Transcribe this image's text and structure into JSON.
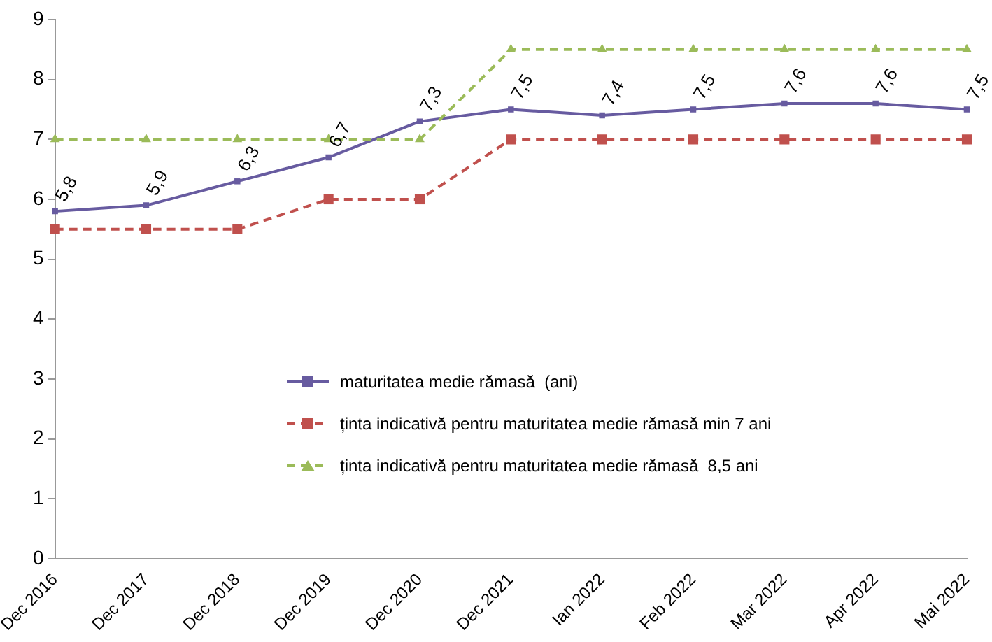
{
  "chart_data": {
    "type": "line",
    "categories": [
      "Dec 2016",
      "Dec 2017",
      "Dec 2018",
      "Dec 2019",
      "Dec 2020",
      "Dec 2021",
      "Ian 2022",
      "Feb 2022",
      "Mar 2022",
      "Apr 2022",
      "Mai 2022"
    ],
    "series": [
      {
        "name": "maturitatea medie rămasă  (ani)",
        "color": "#675ba0",
        "marker": "square",
        "line_style": "solid",
        "values": [
          5.8,
          5.9,
          6.3,
          6.7,
          7.3,
          7.5,
          7.4,
          7.5,
          7.6,
          7.6,
          7.5
        ],
        "value_labels": [
          "5,8",
          "5,9",
          "6,3",
          "6,7",
          "7,3",
          "7,5",
          "7,4",
          "7,5",
          "7,6",
          "7,6",
          "7,5"
        ]
      },
      {
        "name": "ținta indicativă pentru maturitatea medie rămasă min 7 ani",
        "color": "#c0504d",
        "marker": "square",
        "line_style": "dashed",
        "values": [
          5.5,
          5.5,
          5.5,
          6,
          6,
          7,
          7,
          7,
          7,
          7,
          7
        ]
      },
      {
        "name": "ținta indicativă pentru maturitatea medie rămasă  8,5 ani",
        "color": "#9bbb59",
        "marker": "triangle",
        "line_style": "dashed",
        "values": [
          7,
          7,
          7,
          7,
          7,
          8.5,
          8.5,
          8.5,
          8.5,
          8.5,
          8.5
        ]
      }
    ],
    "ylim": [
      0,
      9
    ],
    "yticks": [
      0,
      1,
      2,
      3,
      4,
      5,
      6,
      7,
      8,
      9
    ],
    "grid": false,
    "legend": "center"
  }
}
